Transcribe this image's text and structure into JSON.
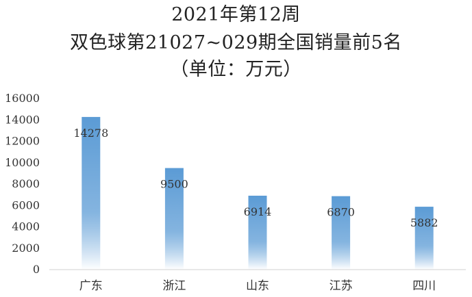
{
  "chart_data": {
    "type": "bar",
    "title_lines": [
      "2021年第12周",
      "双色球第21027~029期全国销量前5名",
      "（单位：万元）"
    ],
    "categories": [
      "广东",
      "浙江",
      "山东",
      "江苏",
      "四川"
    ],
    "values": [
      14278,
      9500,
      6914,
      6870,
      5882
    ],
    "data_labels": [
      "14278",
      "9500",
      "6914",
      "6870",
      "5882"
    ],
    "yticks": [
      0,
      2000,
      4000,
      6000,
      8000,
      10000,
      12000,
      14000,
      16000
    ],
    "ylim": [
      0,
      16000
    ],
    "grid": false,
    "legend": "none",
    "colors": {
      "bar_top": "#5b9bd5",
      "bar_bottom": "#ffffff",
      "axis": "#d0d0d0",
      "text": "#333333"
    }
  }
}
